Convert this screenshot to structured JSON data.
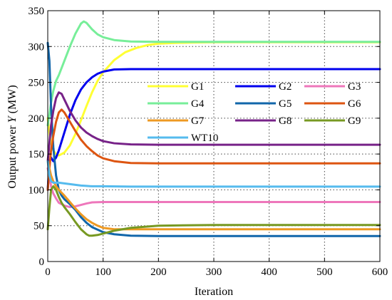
{
  "chart_data": {
    "type": "line",
    "xlabel": "Iteration",
    "ylabel_prefix": "Output power ",
    "ylabel_symbol": "Y",
    "ylabel_suffix": " (MW)",
    "xlim": [
      0,
      600
    ],
    "ylim": [
      0,
      350
    ],
    "xticks": [
      0,
      100,
      200,
      300,
      400,
      500,
      600
    ],
    "yticks": [
      0,
      50,
      100,
      150,
      200,
      250,
      300,
      350
    ],
    "grid": true,
    "legend_placement": "upper-center, 3 columns",
    "series": [
      {
        "name": "G1",
        "color": "#ffff33",
        "x": [
          0,
          3,
          6,
          10,
          15,
          20,
          30,
          40,
          50,
          60,
          70,
          80,
          90,
          100,
          120,
          140,
          160,
          180,
          200,
          230,
          260,
          300,
          400,
          500,
          600
        ],
        "y": [
          200,
          180,
          165,
          155,
          150,
          148,
          152,
          162,
          178,
          197,
          217,
          236,
          252,
          264,
          281,
          292,
          298,
          302,
          304,
          305,
          305.5,
          306,
          306,
          306,
          306
        ]
      },
      {
        "name": "G2",
        "color": "#0000ee",
        "x": [
          0,
          3,
          6,
          10,
          15,
          20,
          30,
          40,
          50,
          60,
          70,
          80,
          90,
          100,
          120,
          150,
          200,
          300,
          400,
          500,
          600
        ],
        "y": [
          100,
          140,
          145,
          140,
          145,
          155,
          180,
          205,
          225,
          240,
          250,
          257,
          262,
          265,
          268,
          268.5,
          268.5,
          268.5,
          268.5,
          268.5,
          268.5
        ]
      },
      {
        "name": "G3",
        "color": "#ee77bb",
        "x": [
          0,
          3,
          6,
          10,
          15,
          20,
          30,
          40,
          50,
          60,
          70,
          80,
          100,
          150,
          200,
          300,
          400,
          500,
          600
        ],
        "y": [
          130,
          120,
          105,
          95,
          88,
          82,
          78,
          76,
          77,
          79,
          81,
          82.5,
          83,
          83,
          83,
          83,
          83,
          83,
          83
        ]
      },
      {
        "name": "G4",
        "color": "#77ee99",
        "x": [
          0,
          3,
          6,
          10,
          15,
          20,
          30,
          40,
          50,
          60,
          65,
          70,
          80,
          90,
          100,
          120,
          150,
          200,
          250,
          300,
          400,
          500,
          600
        ],
        "y": [
          190,
          205,
          222,
          238,
          252,
          260,
          280,
          300,
          318,
          332,
          335,
          333,
          324,
          317,
          313,
          309,
          307,
          306.5,
          306.5,
          306.5,
          306.5,
          306.5,
          306.5
        ]
      },
      {
        "name": "G5",
        "color": "#1166aa",
        "x": [
          0,
          3,
          6,
          10,
          15,
          20,
          25,
          30,
          40,
          50,
          60,
          70,
          80,
          100,
          120,
          150,
          200,
          300,
          400,
          500,
          600
        ],
        "y": [
          305,
          280,
          215,
          160,
          120,
          100,
          92,
          87,
          80,
          72,
          62,
          54,
          48,
          41,
          38,
          36,
          35.5,
          35.5,
          35.5,
          35.5,
          35.5
        ]
      },
      {
        "name": "G6",
        "color": "#dd5511",
        "x": [
          0,
          3,
          6,
          10,
          15,
          20,
          25,
          30,
          40,
          50,
          60,
          70,
          80,
          90,
          100,
          120,
          150,
          200,
          300,
          400,
          500,
          600
        ],
        "y": [
          100,
          130,
          155,
          175,
          195,
          208,
          212,
          208,
          195,
          182,
          170,
          161,
          154,
          148,
          144,
          140,
          137.5,
          137,
          137,
          137,
          137,
          137
        ]
      },
      {
        "name": "G7",
        "color": "#ee9922",
        "x": [
          0,
          3,
          6,
          10,
          15,
          20,
          30,
          40,
          50,
          60,
          70,
          80,
          90,
          100,
          120,
          150,
          200,
          300,
          400,
          500,
          600
        ],
        "y": [
          140,
          130,
          120,
          112,
          105,
          100,
          92,
          83,
          74,
          66,
          59,
          54,
          50,
          47,
          45,
          45,
          45,
          45,
          45,
          45,
          45
        ]
      },
      {
        "name": "G8",
        "color": "#772288",
        "x": [
          0,
          3,
          6,
          10,
          15,
          20,
          25,
          30,
          40,
          50,
          60,
          70,
          80,
          90,
          100,
          120,
          150,
          200,
          300,
          400,
          500,
          600
        ],
        "y": [
          140,
          165,
          190,
          210,
          228,
          236,
          234,
          226,
          210,
          197,
          187,
          180,
          175,
          171,
          168,
          165,
          163.5,
          163,
          163,
          163,
          163,
          163
        ]
      },
      {
        "name": "G9",
        "color": "#779922",
        "x": [
          0,
          3,
          6,
          10,
          15,
          20,
          25,
          30,
          40,
          50,
          60,
          70,
          75,
          80,
          90,
          100,
          120,
          150,
          200,
          300,
          400,
          500,
          600
        ],
        "y": [
          45,
          75,
          100,
          105,
          100,
          90,
          82,
          76,
          66,
          55,
          45,
          38,
          36,
          36,
          37,
          39,
          43,
          47,
          50,
          51,
          51,
          51,
          51
        ]
      },
      {
        "name": "WT10",
        "color": "#55bbee",
        "x": [
          0,
          3,
          6,
          10,
          15,
          20,
          30,
          40,
          50,
          60,
          70,
          80,
          100,
          150,
          200,
          300,
          400,
          500,
          600
        ],
        "y": [
          140,
          120,
          112,
          110,
          110,
          110,
          109,
          108,
          107,
          106,
          105.5,
          105,
          105,
          104.5,
          104.5,
          104.5,
          104.5,
          104.5,
          104.5
        ]
      }
    ]
  }
}
